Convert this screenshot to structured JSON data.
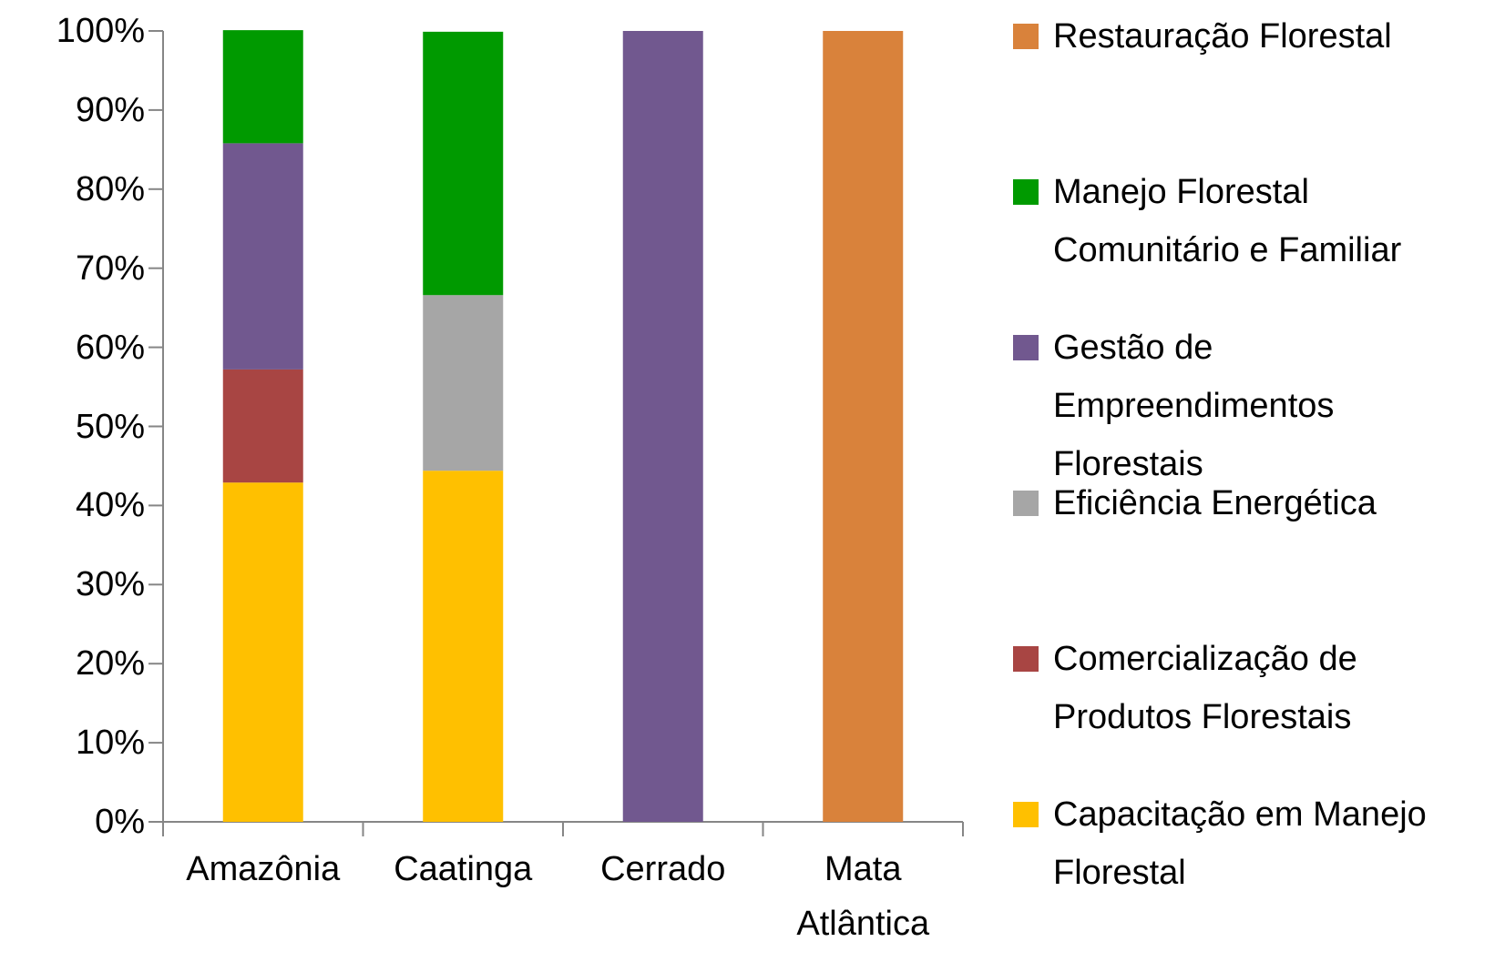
{
  "chart_data": {
    "type": "stacked_bar",
    "categories": [
      "Amazônia",
      "Caatinga",
      "Cerrado",
      "Mata Atlântica"
    ],
    "series": [
      {
        "name": "Capacitação em Manejo Florestal",
        "color": "#ffc000",
        "values": [
          42.9,
          44.4,
          0,
          0
        ]
      },
      {
        "name": "Comercialização de Produtos Florestais",
        "color": "#a84543",
        "values": [
          14.3,
          0,
          0,
          0
        ]
      },
      {
        "name": "Eficiência Energética",
        "color": "#a6a6a6",
        "values": [
          0,
          22.2,
          0,
          0
        ]
      },
      {
        "name": "Gestão de Empreendimentos Florestais",
        "color": "#71588f",
        "values": [
          28.6,
          0,
          100,
          0
        ]
      },
      {
        "name": "Manejo Florestal Comunitário e Familiar",
        "color": "#009a00",
        "values": [
          14.3,
          33.3,
          0,
          0
        ]
      },
      {
        "name": "Restauração Florestal",
        "color": "#d9823b",
        "values": [
          0,
          0,
          0,
          100
        ]
      }
    ],
    "ylim": [
      0,
      100
    ],
    "yticks": [
      {
        "value": 0,
        "label": "0%"
      },
      {
        "value": 10,
        "label": "10%"
      },
      {
        "value": 20,
        "label": "20%"
      },
      {
        "value": 30,
        "label": "30%"
      },
      {
        "value": 40,
        "label": "40%"
      },
      {
        "value": 50,
        "label": "50%"
      },
      {
        "value": 60,
        "label": "60%"
      },
      {
        "value": 70,
        "label": "70%"
      },
      {
        "value": 80,
        "label": "80%"
      },
      {
        "value": 90,
        "label": "90%"
      },
      {
        "value": 100,
        "label": "100%"
      }
    ],
    "legend": "right"
  }
}
